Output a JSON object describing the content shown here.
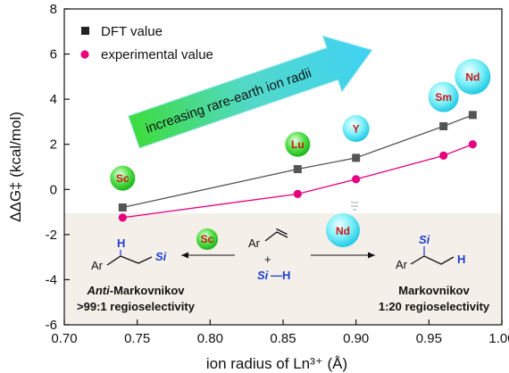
{
  "chart_data": {
    "type": "line",
    "xlabel": "ion radius of Ln³⁺ (Å)",
    "ylabel": "ΔΔG‡ (kcal/mol)",
    "xlim": [
      0.7,
      1.0
    ],
    "ylim": [
      -6,
      8
    ],
    "xticks": [
      "0.70",
      "0.75",
      "0.80",
      "0.85",
      "0.90",
      "0.95",
      "1.00"
    ],
    "yticks": [
      "-6",
      "-4",
      "-2",
      "0",
      "2",
      "4",
      "6",
      "8"
    ],
    "x": [
      0.74,
      0.86,
      0.9,
      0.96,
      0.98
    ],
    "series": [
      {
        "name": "DFT value",
        "color": "#555555",
        "marker": "square",
        "values": [
          -0.8,
          0.9,
          1.4,
          2.8,
          3.3
        ]
      },
      {
        "name": "experimental value",
        "color": "#e6007e",
        "marker": "circle",
        "values": [
          -1.25,
          -0.2,
          0.45,
          1.5,
          2.0
        ]
      }
    ],
    "legend_position": "top-left",
    "element_labels": [
      {
        "label": "Sc",
        "x": 0.74,
        "y": 0.5,
        "color": "green"
      },
      {
        "label": "Lu",
        "x": 0.86,
        "y": 2.0,
        "color": "green"
      },
      {
        "label": "Y",
        "x": 0.9,
        "y": 2.7,
        "color": "cyan"
      },
      {
        "label": "Sm",
        "x": 0.96,
        "y": 4.1,
        "color": "cyan"
      },
      {
        "label": "Nd",
        "x": 0.98,
        "y": 5.0,
        "color": "cyan"
      }
    ],
    "trend_arrow_text": "increasing rare-earth ion radii"
  },
  "scheme": {
    "left_catalyst": "Sc",
    "right_catalyst": "Nd",
    "ar": "Ar",
    "plus": "+",
    "si": "Si",
    "h": "H",
    "si_h_bond": "—H",
    "left_caption_italic": "Anti",
    "left_caption_rest": "-Markovnikov",
    "left_selectivity": ">99:1 regioselectivity",
    "right_caption": "Markovnikov",
    "right_selectivity": "1:20 regioselectivity"
  },
  "colors": {
    "dft": "#555555",
    "exp": "#e6007e",
    "green_bubble": "#3bd13b",
    "cyan_bubble": "#5fe3f0",
    "label_red": "#c81818",
    "si_blue": "#1e3fd0",
    "lower_band": "#f5efe9"
  }
}
